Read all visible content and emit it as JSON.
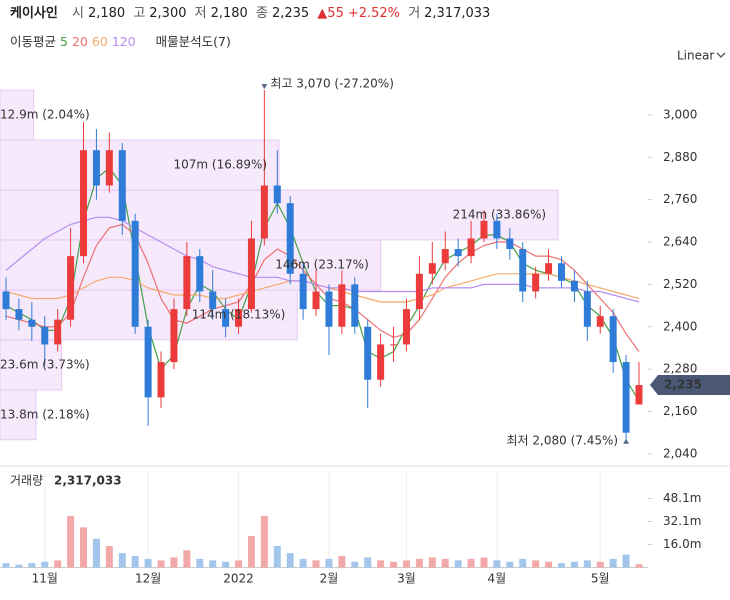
{
  "header": {
    "name": "케이사인",
    "fields": [
      {
        "label": "시",
        "value": "2,180"
      },
      {
        "label": "고",
        "value": "2,300"
      },
      {
        "label": "저",
        "value": "2,180"
      },
      {
        "label": "종",
        "value": "2,235"
      }
    ],
    "change": "▲55",
    "change_pct": "+2.52%",
    "volume_label": "거",
    "volume_value": "2,317,033"
  },
  "chart_data": {
    "type": "candlestick",
    "ma_title": "이동평균",
    "profile_title": "매물분석도(7)",
    "scale_label": "Linear",
    "up_color": "#ec3b3b",
    "down_color": "#2f7bd8",
    "volume_up_color": "#f3a9a9",
    "volume_down_color": "#a2c5ec",
    "categories": [
      null,
      null,
      null,
      "11월",
      null,
      null,
      null,
      null,
      null,
      null,
      null,
      "12월",
      null,
      null,
      null,
      null,
      null,
      null,
      "2022",
      null,
      null,
      null,
      null,
      null,
      null,
      "2월",
      null,
      null,
      null,
      null,
      null,
      "3월",
      null,
      null,
      null,
      null,
      null,
      null,
      "4월",
      null,
      null,
      null,
      null,
      null,
      null,
      null,
      "5월",
      null,
      null,
      null
    ],
    "open": [
      2500,
      2450,
      2420,
      2400,
      2350,
      2420,
      2600,
      2900,
      2800,
      2900,
      2700,
      2400,
      2200,
      2300,
      2450,
      2600,
      2500,
      2450,
      2400,
      2450,
      2650,
      2800,
      2750,
      2550,
      2450,
      2500,
      2400,
      2520,
      2400,
      2250,
      2350,
      2350,
      2450,
      2550,
      2580,
      2620,
      2600,
      2650,
      2700,
      2650,
      2620,
      2500,
      2550,
      2580,
      2530,
      2500,
      2400,
      2430,
      2300,
      2180
    ],
    "high": [
      2540,
      2480,
      2470,
      2430,
      2450,
      2680,
      2980,
      2960,
      2950,
      2920,
      2720,
      2420,
      2330,
      2480,
      2640,
      2620,
      2560,
      2480,
      2480,
      2700,
      3070,
      2900,
      2770,
      2580,
      2560,
      2520,
      2560,
      2540,
      2420,
      2380,
      2400,
      2480,
      2600,
      2640,
      2670,
      2650,
      2700,
      2730,
      2720,
      2680,
      2640,
      2570,
      2620,
      2600,
      2560,
      2530,
      2460,
      2450,
      2320,
      2300
    ],
    "low": [
      2420,
      2390,
      2360,
      2290,
      2330,
      2400,
      2580,
      2760,
      2780,
      2660,
      2380,
      2120,
      2170,
      2280,
      2430,
      2470,
      2420,
      2370,
      2380,
      2440,
      2630,
      2720,
      2520,
      2420,
      2430,
      2320,
      2380,
      2380,
      2170,
      2230,
      2300,
      2330,
      2420,
      2520,
      2560,
      2570,
      2580,
      2640,
      2620,
      2590,
      2470,
      2480,
      2530,
      2510,
      2470,
      2360,
      2380,
      2270,
      2080,
      2180
    ],
    "close": [
      2450,
      2420,
      2400,
      2350,
      2420,
      2600,
      2900,
      2800,
      2900,
      2700,
      2400,
      2200,
      2300,
      2450,
      2600,
      2500,
      2450,
      2400,
      2450,
      2650,
      2800,
      2750,
      2550,
      2450,
      2500,
      2400,
      2520,
      2400,
      2250,
      2350,
      2350,
      2450,
      2550,
      2580,
      2620,
      2600,
      2650,
      2700,
      2650,
      2620,
      2500,
      2550,
      2580,
      2530,
      2500,
      2400,
      2430,
      2300,
      2100,
      2235
    ],
    "series": [
      {
        "name": "5",
        "color": "#43a047",
        "values": [
          2460,
          2440,
          2420,
          2390,
          2390,
          2480,
          2700,
          2820,
          2850,
          2800,
          2600,
          2400,
          2280,
          2320,
          2450,
          2520,
          2500,
          2450,
          2420,
          2520,
          2680,
          2750,
          2680,
          2580,
          2500,
          2460,
          2460,
          2450,
          2330,
          2310,
          2330,
          2400,
          2460,
          2530,
          2590,
          2610,
          2630,
          2660,
          2660,
          2640,
          2580,
          2560,
          2550,
          2540,
          2520,
          2460,
          2430,
          2370,
          2250,
          2190
        ]
      },
      {
        "name": "20",
        "color": "#ec6f6f",
        "values": [
          2430,
          2420,
          2410,
          2400,
          2400,
          2440,
          2540,
          2630,
          2680,
          2690,
          2660,
          2580,
          2480,
          2420,
          2410,
          2430,
          2450,
          2460,
          2470,
          2520,
          2590,
          2620,
          2600,
          2560,
          2520,
          2480,
          2470,
          2450,
          2420,
          2390,
          2370,
          2380,
          2420,
          2480,
          2540,
          2580,
          2610,
          2630,
          2640,
          2640,
          2620,
          2600,
          2600,
          2590,
          2560,
          2520,
          2480,
          2440,
          2380,
          2330
        ]
      },
      {
        "name": "60",
        "color": "#f5ab6b",
        "values": [
          2500,
          2490,
          2480,
          2480,
          2480,
          2490,
          2510,
          2530,
          2540,
          2540,
          2530,
          2510,
          2500,
          2490,
          2490,
          2490,
          2480,
          2480,
          2490,
          2500,
          2510,
          2520,
          2530,
          2530,
          2520,
          2510,
          2500,
          2490,
          2480,
          2470,
          2470,
          2470,
          2480,
          2490,
          2510,
          2520,
          2530,
          2540,
          2550,
          2550,
          2550,
          2550,
          2550,
          2540,
          2530,
          2520,
          2510,
          2500,
          2490,
          2480
        ]
      },
      {
        "name": "120",
        "color": "#b58cf0",
        "values": [
          2560,
          2590,
          2620,
          2650,
          2670,
          2690,
          2700,
          2710,
          2710,
          2700,
          2680,
          2660,
          2640,
          2620,
          2600,
          2590,
          2570,
          2560,
          2550,
          2540,
          2540,
          2540,
          2530,
          2530,
          2520,
          2510,
          2510,
          2500,
          2500,
          2500,
          2500,
          2500,
          2500,
          2510,
          2510,
          2510,
          2510,
          2520,
          2520,
          2520,
          2520,
          2510,
          2510,
          2510,
          2510,
          2500,
          2500,
          2490,
          2480,
          2470
        ]
      }
    ],
    "ylim": [
      2017,
      3113
    ],
    "yticks": [
      {
        "value": 3000,
        "label": "3,000"
      },
      {
        "value": 2880,
        "label": "2,880"
      },
      {
        "value": 2760,
        "label": "2,760"
      },
      {
        "value": 2640,
        "label": "2,640"
      },
      {
        "value": 2520,
        "label": "2,520"
      },
      {
        "value": 2400,
        "label": "2,400"
      },
      {
        "value": 2280,
        "label": "2,280"
      },
      {
        "value": 2160,
        "label": "2,160"
      },
      {
        "value": 2040,
        "label": "2,040"
      }
    ],
    "last_price_label": "2,235",
    "high_annotation": "최고 3,070 (-27.20%)",
    "low_annotation": "최저 2,080 (7.45%)",
    "volume_profile": {
      "bins": [
        2080,
        2221,
        2363,
        2504,
        2646,
        2787,
        2929,
        3070
      ],
      "values": [
        13.8,
        23.6,
        114,
        146,
        214,
        107,
        12.9
      ],
      "value_labels": [
        "13.8m (2.18%)",
        "23.6m (3.73%)",
        "114m (18.13%)",
        "146m (23.17%)",
        "214m (33.86%)",
        "107m (16.89%)",
        "12.9m (2.04%)"
      ],
      "xlim": [
        0,
        250
      ],
      "color": "#f3e2fb"
    },
    "volume_title": "거래량",
    "volume_last": "2,317,033",
    "volume": [
      3,
      2,
      3,
      4,
      5,
      36,
      28,
      20,
      15,
      10,
      8,
      6,
      5,
      7,
      12,
      6,
      5,
      4,
      5,
      22,
      36,
      15,
      10,
      6,
      5,
      6,
      8,
      4,
      7,
      5,
      4,
      5,
      6,
      7,
      6,
      5,
      6,
      7,
      5,
      4,
      6,
      5,
      4,
      3,
      4,
      5,
      4,
      6,
      9,
      2.317
    ],
    "volume_ylim": [
      0,
      68
    ],
    "volume_ticks": [
      {
        "value": 48.1,
        "label": "48.1m"
      },
      {
        "value": 32.1,
        "label": "32.1m"
      },
      {
        "value": 16.0,
        "label": "16.0m"
      }
    ]
  }
}
